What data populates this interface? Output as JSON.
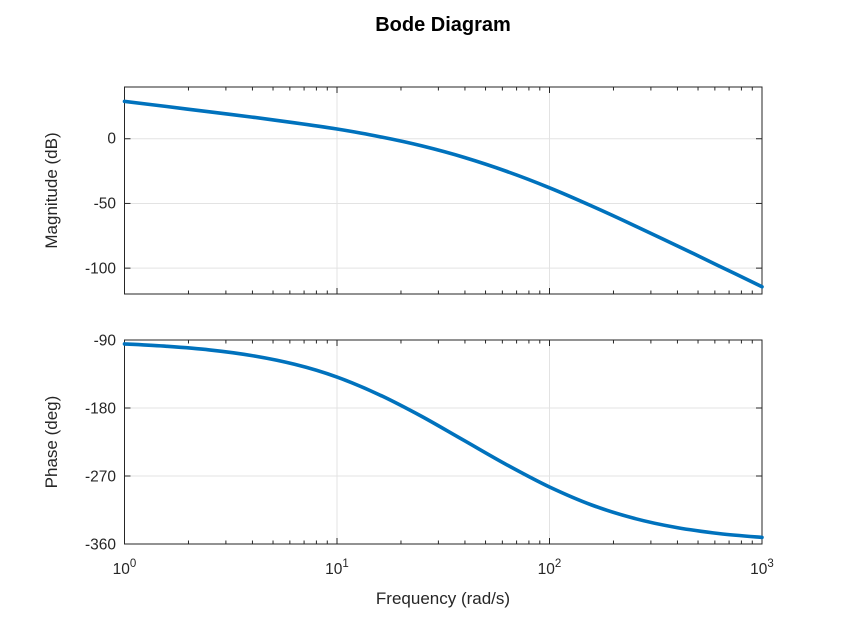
{
  "labels": {
    "title": "Bode Diagram",
    "mag_ylabel": "Magnitude (dB)",
    "phase_ylabel": "Phase (deg)",
    "xlabel": "Frequency (rad/s)",
    "mag_yticks": [
      "0",
      "-50",
      "-100"
    ],
    "phase_yticks": [
      "-90",
      "-180",
      "-270",
      "-360"
    ],
    "xtick_base": "10",
    "xtick_exps": [
      "0",
      "1",
      "2",
      "3"
    ]
  },
  "style": {
    "line_color": "#0072BD",
    "axis_color": "#262626",
    "grid_color": "#e3e3e3",
    "background": "#ffffff"
  },
  "chart_data": [
    {
      "type": "line",
      "subplot": "magnitude",
      "title": "Bode Diagram",
      "xlabel": "Frequency (rad/s)",
      "ylabel": "Magnitude (dB)",
      "xscale": "log",
      "xlim": [
        1,
        1000
      ],
      "ylim": [
        -120,
        40
      ],
      "yticks": [
        0,
        -50,
        -100
      ],
      "xtick_labels": [
        "10^0",
        "10^1",
        "10^2",
        "10^3"
      ],
      "grid": true,
      "legend": "none",
      "line_color": "#0072BD",
      "x": [
        1,
        1.58,
        2.51,
        3.98,
        6.31,
        10,
        15.8,
        25.1,
        39.8,
        63.1,
        100,
        158,
        251,
        398,
        631,
        1000
      ],
      "y": [
        28.9,
        24.9,
        20.8,
        16.7,
        12.3,
        7.5,
        1.7,
        -5.5,
        -14.5,
        -25.3,
        -37.9,
        -52.0,
        -67.1,
        -82.7,
        -98.5,
        -114.4
      ]
    },
    {
      "type": "line",
      "subplot": "phase",
      "xlabel": "Frequency (rad/s)",
      "ylabel": "Phase (deg)",
      "xscale": "log",
      "xlim": [
        1,
        1000
      ],
      "ylim": [
        -360,
        -90
      ],
      "yticks": [
        -90,
        -180,
        -270,
        -360
      ],
      "xtick_labels": [
        "10^0",
        "10^1",
        "10^2",
        "10^3"
      ],
      "grid": true,
      "legend": "none",
      "line_color": "#0072BD",
      "x": [
        1,
        1.58,
        2.51,
        3.98,
        6.31,
        10,
        15.8,
        25.1,
        39.8,
        63.1,
        100,
        158,
        251,
        398,
        631,
        1000
      ],
      "y": [
        -95.2,
        -98.3,
        -103.1,
        -110.6,
        -122.1,
        -139.1,
        -162.4,
        -191.3,
        -223.3,
        -255.3,
        -284.5,
        -308.4,
        -326.1,
        -338.3,
        -346.2,
        -351.3
      ]
    }
  ]
}
